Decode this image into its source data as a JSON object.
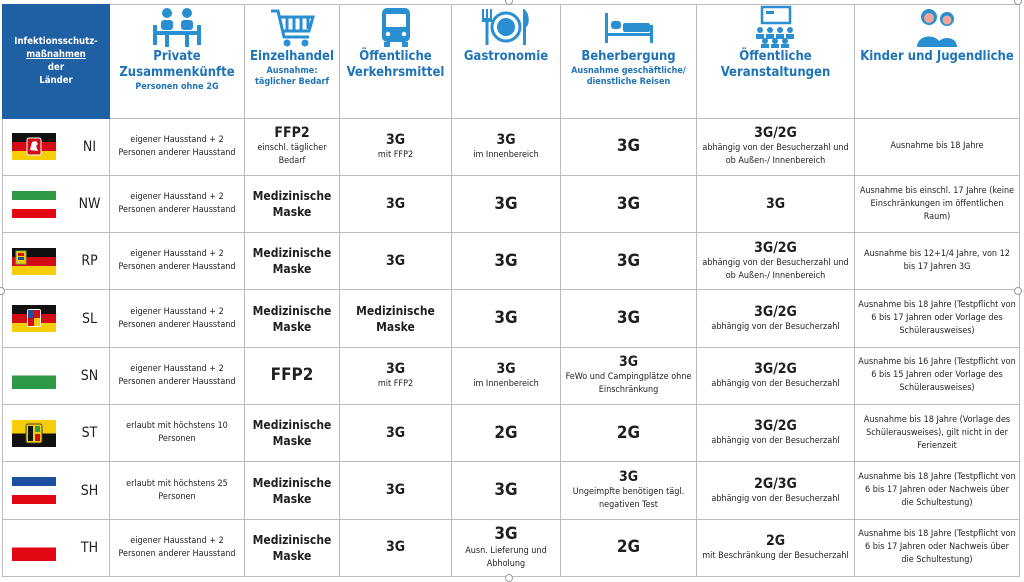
{
  "header": {
    "corner_line1": "Infektionsschutz-",
    "corner_line2": "maßnahmen",
    "corner_line3": "der",
    "corner_line4": "Länder",
    "categories": [
      {
        "title": "Private Zusammenkünfte",
        "sub": "Personen ohne 2G",
        "icon": "meeting-icon"
      },
      {
        "title": "Einzelhandel",
        "sub": "Ausnahme: täglicher Bedarf",
        "icon": "shopping-cart-icon"
      },
      {
        "title": "Öffentliche Verkehrsmittel",
        "sub": "",
        "icon": "bus-icon"
      },
      {
        "title": "Gastronomie",
        "sub": "",
        "icon": "plate-cutlery-icon"
      },
      {
        "title": "Beherbergung",
        "sub": "Ausnahme geschäftliche/ dienstliche Reisen",
        "icon": "bed-icon"
      },
      {
        "title": "Öffentliche Veranstaltungen",
        "sub": "",
        "icon": "audience-icon"
      },
      {
        "title": "Kinder und Jugendliche",
        "sub": "",
        "icon": "children-icon"
      }
    ]
  },
  "colors": {
    "header_blue": "#1f5fa3",
    "title_blue": "#1f73b7",
    "icon_blue": "#2a8fd1"
  },
  "rows": [
    {
      "code": "NI",
      "flag": "niedersachsen-flag",
      "private": "eigener Hausstand + 2 Personen anderer Hausstand",
      "retail_main": "FFP2",
      "retail_sub": "einschl. täglicher Bedarf",
      "transport_main": "3G",
      "transport_sub": "mit FFP2",
      "gastro_main": "3G",
      "gastro_sub": "im Innenbereich",
      "lodging_main": "3G",
      "lodging_sub": "",
      "events_main": "3G/2G",
      "events_sub": "abhängig von der Besucherzahl und ob Außen-/ Innenbereich",
      "youth": "Ausnahme bis 18 Jahre"
    },
    {
      "code": "NW",
      "flag": "nordrhein-westfalen-flag",
      "private": "eigener Hausstand + 2 Personen anderer Hausstand",
      "retail_main": "Medizinische Maske",
      "retail_sub": "",
      "transport_main": "3G",
      "transport_sub": "",
      "gastro_main": "3G",
      "gastro_sub": "",
      "lodging_main": "3G",
      "lodging_sub": "",
      "events_main": "3G",
      "events_sub": "",
      "youth": "Ausnahme bis einschl. 17 Jahre (keine Einschränkungen im öffentlichen Raum)"
    },
    {
      "code": "RP",
      "flag": "rheinland-pfalz-flag",
      "private": "eigener Hausstand + 2 Personen anderer Hausstand",
      "retail_main": "Medizinische Maske",
      "retail_sub": "",
      "transport_main": "3G",
      "transport_sub": "",
      "gastro_main": "3G",
      "gastro_sub": "",
      "lodging_main": "3G",
      "lodging_sub": "",
      "events_main": "3G/2G",
      "events_sub": "abhängig von der Besucherzahl und ob Außen-/ Innenbereich",
      "youth": "Ausnahme bis 12+1/4 Jahre, von 12 bis 17 Jahren 3G"
    },
    {
      "code": "SL",
      "flag": "saarland-flag",
      "private": "eigener Hausstand + 2 Personen anderer Hausstand",
      "retail_main": "Medizinische Maske",
      "retail_sub": "",
      "transport_main": "Medizinische Maske",
      "transport_sub": "",
      "gastro_main": "3G",
      "gastro_sub": "",
      "lodging_main": "3G",
      "lodging_sub": "",
      "events_main": "3G/2G",
      "events_sub": "abhängig von der Besucherzahl",
      "youth": "Ausnahme bis 18 Jahre (Testpflicht von 6 bis 17 Jahren oder Vorlage des Schülerausweises)"
    },
    {
      "code": "SN",
      "flag": "sachsen-flag",
      "private": "eigener Hausstand + 2 Personen anderer Hausstand",
      "retail_main": "FFP2",
      "retail_sub": "",
      "transport_main": "3G",
      "transport_sub": "mit FFP2",
      "gastro_main": "3G",
      "gastro_sub": "im Innenbereich",
      "lodging_main": "3G",
      "lodging_sub": "FeWo und Campingplätze ohne Einschränkung",
      "events_main": "3G/2G",
      "events_sub": "abhängig von der Besucherzahl",
      "youth": "Ausnahme bis 16 Jahre (Testpflicht von 6 bis 15 Jahren oder Vorlage des Schülerausweises)"
    },
    {
      "code": "ST",
      "flag": "sachsen-anhalt-flag",
      "private": "erlaubt mit höchstens 10 Personen",
      "retail_main": "Medizinische Maske",
      "retail_sub": "",
      "transport_main": "3G",
      "transport_sub": "",
      "gastro_main": "2G",
      "gastro_sub": "",
      "lodging_main": "2G",
      "lodging_sub": "",
      "events_main": "3G/2G",
      "events_sub": "abhängig von der Besucherzahl",
      "youth": "Ausnahme bis 18 Jahre (Vorlage des Schülerausweises), gilt nicht in der Ferienzeit"
    },
    {
      "code": "SH",
      "flag": "schleswig-holstein-flag",
      "private": "erlaubt mit höchstens 25 Personen",
      "retail_main": "Medizinische Maske",
      "retail_sub": "",
      "transport_main": "3G",
      "transport_sub": "",
      "gastro_main": "3G",
      "gastro_sub": "",
      "lodging_main": "3G",
      "lodging_sub": "Ungeimpfte benötigen tägl. negativen Test",
      "events_main": "2G/3G",
      "events_sub": "abhängig von der Besucherzahl",
      "youth": "Ausnahme bis 18 Jahre (Testpflicht von 6 bis 17 Jahren oder Nachweis über die Schultestung)"
    },
    {
      "code": "TH",
      "flag": "thueringen-flag",
      "private": "eigener Hausstand + 2 Personen anderer Hausstand",
      "retail_main": "Medizinische Maske",
      "retail_sub": "",
      "transport_main": "3G",
      "transport_sub": "",
      "gastro_main": "3G",
      "gastro_sub": "Ausn. Lieferung und Abholung",
      "lodging_main": "2G",
      "lodging_sub": "",
      "events_main": "2G",
      "events_sub": "mit Beschränkung der Besucherzahl",
      "youth": "Ausnahme bis 18 Jahre (Testpflicht von 6 bis 17 Jahren oder Nachweis über die Schultestung)"
    }
  ]
}
